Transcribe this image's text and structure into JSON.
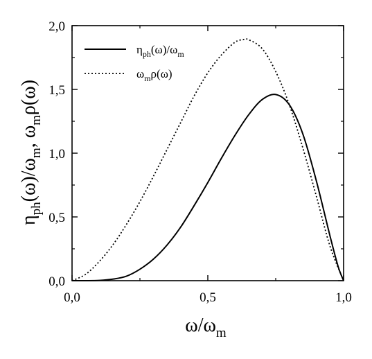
{
  "chart_data": {
    "type": "line",
    "title": "",
    "xlabel": {
      "main": "ω/ω",
      "sub": "m"
    },
    "ylabel": {
      "p1": "η",
      "p1sub": "ph",
      "p2": "(ω)/ω",
      "p2sub": "m",
      "p3": ",   ω",
      "p3sub": "m",
      "p4": "ρ(ω)"
    },
    "xlim": [
      0,
      1
    ],
    "ylim": [
      0,
      2
    ],
    "x_ticks": [
      0,
      0.5,
      1.0
    ],
    "x_tick_labels": [
      "0,0",
      "0,5",
      "1,0"
    ],
    "y_ticks": [
      0,
      0.5,
      1.0,
      1.5,
      2.0
    ],
    "y_tick_labels": [
      "0,0",
      "0,5",
      "1,0",
      "1,5",
      "2,0"
    ],
    "grid": false,
    "legend_position": "top-left",
    "series": [
      {
        "name": "η_ph(ω)/ω_m",
        "legend": {
          "a": "η",
          "asub": "ph",
          "b": "(ω)/ω",
          "bsub": "m"
        },
        "style": "solid",
        "color": "#000000",
        "x": [
          0.0,
          0.05,
          0.1,
          0.15,
          0.2,
          0.25,
          0.3,
          0.35,
          0.4,
          0.45,
          0.5,
          0.55,
          0.6,
          0.65,
          0.7,
          0.75,
          0.8,
          0.85,
          0.9,
          0.95,
          0.98,
          1.0
        ],
        "y": [
          0.0,
          0.0,
          0.002,
          0.012,
          0.035,
          0.09,
          0.17,
          0.28,
          0.42,
          0.59,
          0.77,
          0.96,
          1.14,
          1.3,
          1.42,
          1.46,
          1.38,
          1.15,
          0.78,
          0.35,
          0.11,
          0.0
        ]
      },
      {
        "name": "ω_mρ(ω)",
        "legend": {
          "a": "ω",
          "asub": "m",
          "b": "ρ(ω)",
          "bsub": ""
        },
        "style": "dotted",
        "color": "#000000",
        "x": [
          0.0,
          0.05,
          0.1,
          0.15,
          0.2,
          0.25,
          0.3,
          0.35,
          0.4,
          0.45,
          0.5,
          0.55,
          0.6,
          0.63,
          0.65,
          0.7,
          0.75,
          0.8,
          0.85,
          0.9,
          0.95,
          1.0
        ],
        "y": [
          0.0,
          0.05,
          0.15,
          0.28,
          0.44,
          0.62,
          0.82,
          1.03,
          1.24,
          1.45,
          1.63,
          1.77,
          1.87,
          1.89,
          1.89,
          1.82,
          1.64,
          1.38,
          1.04,
          0.66,
          0.27,
          0.0
        ]
      }
    ]
  }
}
